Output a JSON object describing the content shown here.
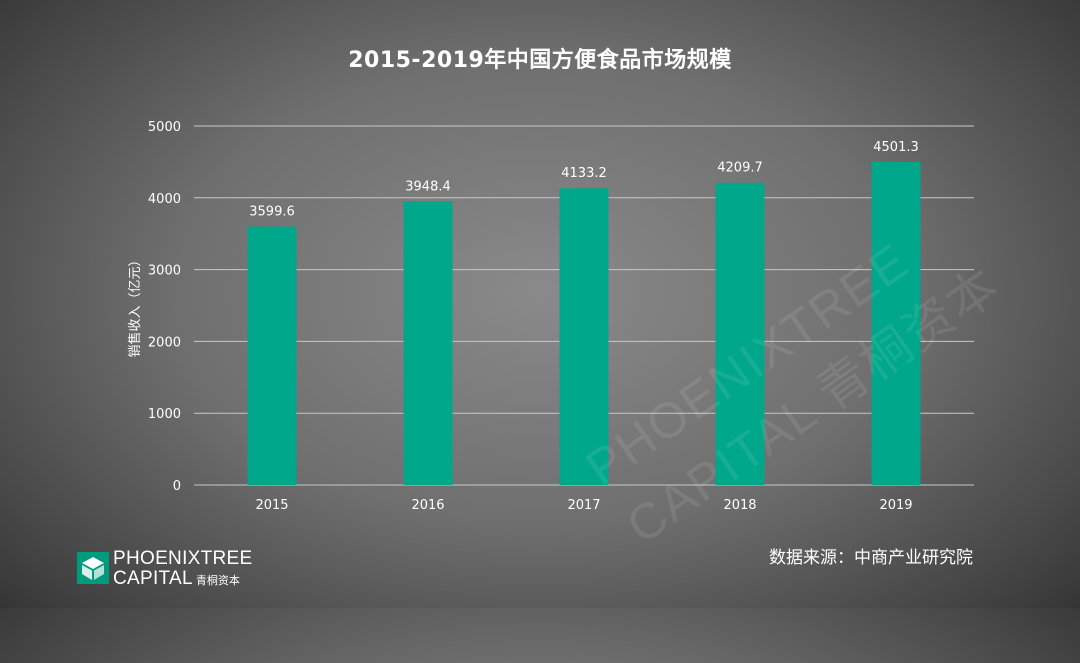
{
  "brand": {
    "line1": "PHOENIXTREE",
    "line2": "CAPITAL",
    "chinese": "青桐资本"
  },
  "watermark": {
    "line1": "PHOENIXTREE",
    "line2": "CAPITAL 青桐资本"
  },
  "source": "数据来源：中商产业研究院",
  "colors": {
    "bar": "#00a78a",
    "gridline": "#c8c8c8",
    "axis_text": "#ffffff",
    "brand": "#009a7c"
  },
  "chart_data": {
    "type": "bar",
    "title": "2015-2019年中国方便食品市场规模",
    "xlabel": "",
    "ylabel": "销售收入（亿元）",
    "categories": [
      "2015",
      "2016",
      "2017",
      "2018",
      "2019"
    ],
    "values": [
      3599.6,
      3948.4,
      4133.2,
      4209.7,
      4501.3
    ],
    "data_labels": [
      "3599.6",
      "3948.4",
      "4133.2",
      "4209.7",
      "4501.3"
    ],
    "ylim": [
      0,
      5000
    ],
    "yticks": [
      "0",
      "1000",
      "2000",
      "3000",
      "4000",
      "5000"
    ],
    "grid": true,
    "legend": "none"
  }
}
